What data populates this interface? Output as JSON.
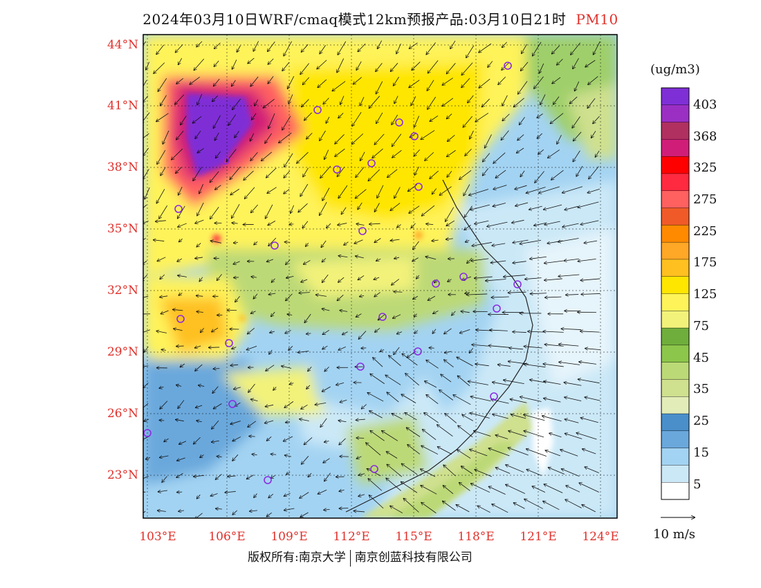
{
  "title": {
    "main": "2024年03月10日WRF/cmaq模式12km预报产品:03月10日21时",
    "species": "PM10"
  },
  "axes": {
    "lat_labels": [
      "44°N",
      "41°N",
      "38°N",
      "35°N",
      "32°N",
      "29°N",
      "26°N",
      "23°N"
    ],
    "lon_labels": [
      "103°E",
      "106°E",
      "109°E",
      "112°E",
      "115°E",
      "118°E",
      "121°E",
      "124°E"
    ],
    "lat_range": [
      21,
      44.5
    ],
    "lon_range": [
      102.8,
      123.8
    ]
  },
  "legend": {
    "unit": "(ug/m3)",
    "labels": [
      "403",
      "368",
      "325",
      "275",
      "225",
      "175",
      "125",
      "75",
      "45",
      "35",
      "25",
      "15",
      "5"
    ],
    "colors": [
      "#7f2fd6",
      "#9b2fc4",
      "#b03060",
      "#d01e78",
      "#ff0000",
      "#ff2a40",
      "#ff6060",
      "#f05a28",
      "#ff8a00",
      "#ffa726",
      "#ffc020",
      "#ffe600",
      "#fff35a",
      "#f2f27a",
      "#6fae3c",
      "#8cc64a",
      "#bcd977",
      "#cfe08e",
      "#e2ecb8",
      "#4a8fca",
      "#6aa8dc",
      "#a3d3f2",
      "#cbe8f7",
      "#ffffff"
    ]
  },
  "vector_reference": "10 m/s",
  "footer": {
    "left": "版权所有:南京大学",
    "right": "南京创蓝科技有限公司"
  }
}
